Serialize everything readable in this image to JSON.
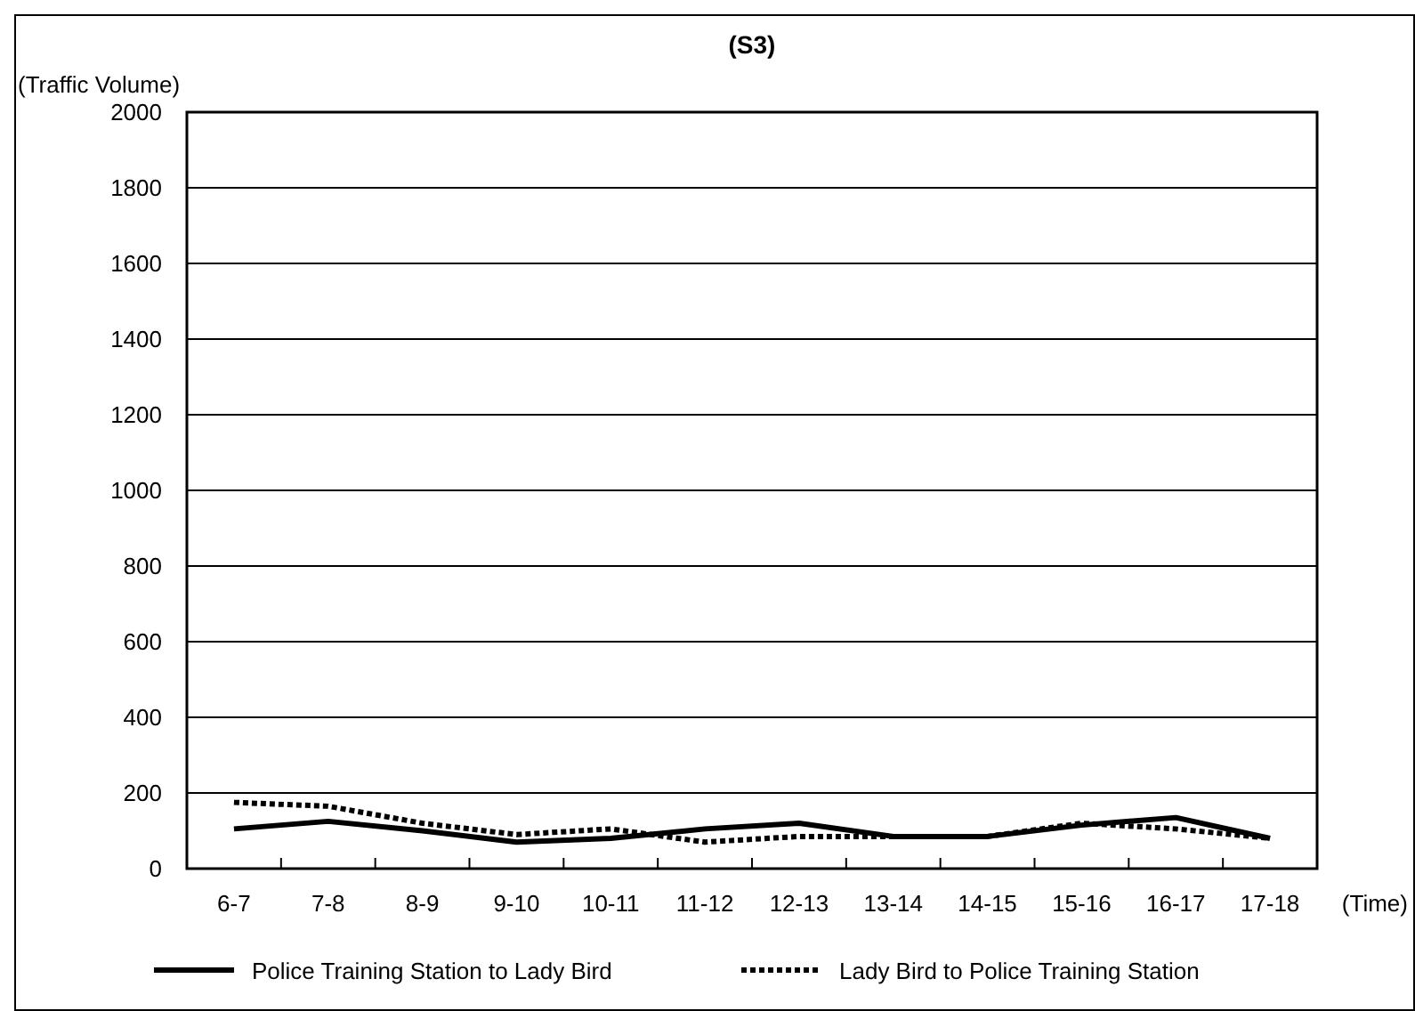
{
  "chart_data": {
    "type": "line",
    "title": "(S3)",
    "ylabel": "(Traffic Volume)",
    "xlabel": "(Time)",
    "categories": [
      "6-7",
      "7-8",
      "8-9",
      "9-10",
      "10-11",
      "11-12",
      "12-13",
      "13-14",
      "14-15",
      "15-16",
      "16-17",
      "17-18"
    ],
    "series": [
      {
        "name": "Police Training Station to Lady Bird",
        "color": "#000000",
        "line_style": "solid",
        "values": [
          105,
          125,
          100,
          70,
          80,
          105,
          120,
          85,
          85,
          115,
          135,
          80
        ]
      },
      {
        "name": "Lady Bird to Police Training Station",
        "color": "#000000",
        "line_style": "dotted",
        "values": [
          175,
          165,
          120,
          90,
          105,
          70,
          85,
          85,
          85,
          120,
          105,
          80
        ]
      }
    ],
    "ylim": [
      0,
      2000
    ],
    "yticks": [
      0,
      200,
      400,
      600,
      800,
      1000,
      1200,
      1400,
      1600,
      1800,
      2000
    ],
    "grid": "y",
    "legend": "bottom",
    "marker": "none"
  }
}
